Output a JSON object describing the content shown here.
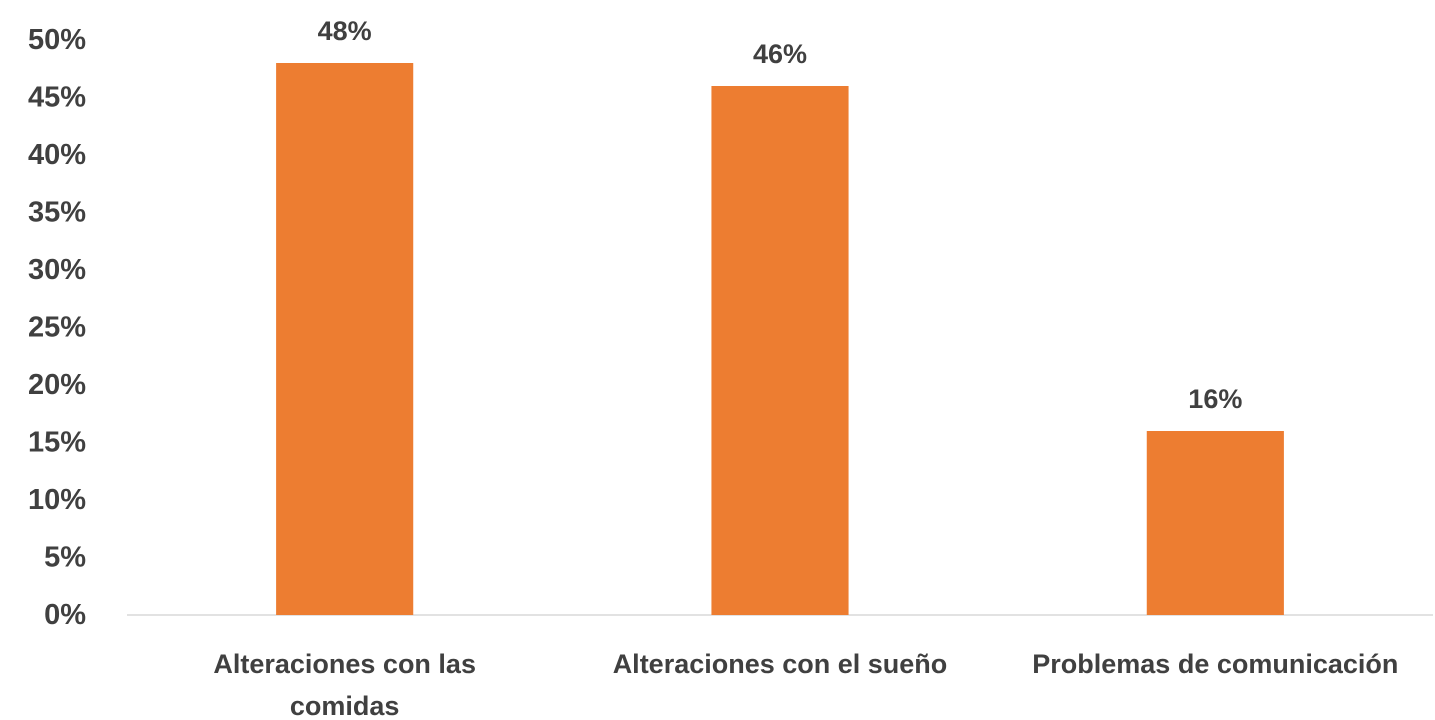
{
  "chart_data": {
    "type": "bar",
    "categories": [
      [
        "Alteraciones con las",
        "comidas"
      ],
      [
        "Alteraciones con el sueño"
      ],
      [
        "Problemas de comunicación"
      ]
    ],
    "values": [
      48,
      46,
      16
    ],
    "data_labels": [
      "48%",
      "46%",
      "16%"
    ],
    "y_ticks": [
      0,
      5,
      10,
      15,
      20,
      25,
      30,
      35,
      40,
      45,
      50
    ],
    "y_tick_labels": [
      "0%",
      "5%",
      "10%",
      "15%",
      "20%",
      "25%",
      "30%",
      "35%",
      "40%",
      "45%",
      "50%"
    ],
    "ylim": [
      0,
      50
    ],
    "grid": false,
    "legend": "none",
    "bar_color": "#ED7D31",
    "axis_color": "#D9D9D9",
    "text_color": "#404040"
  }
}
